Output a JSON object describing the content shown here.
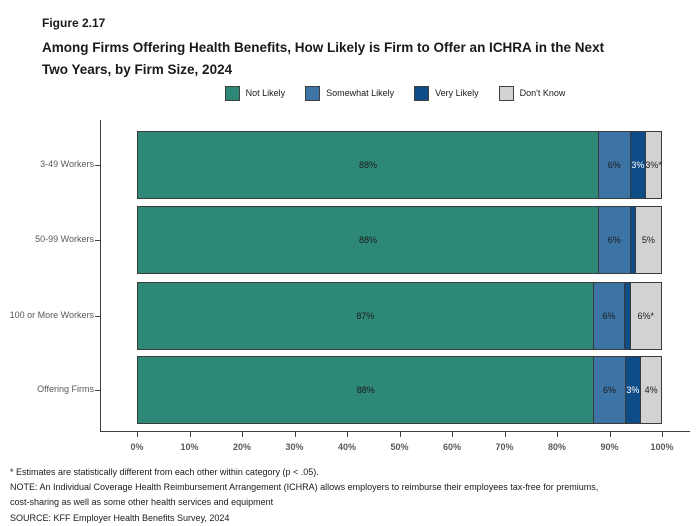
{
  "figure_label": "Figure 2.17",
  "title_line1": "Among Firms Offering Health Benefits, How Likely is Firm to Offer an ICHRA in the Next",
  "title_line2": "Two Years, by Firm Size, 2024",
  "footnotes": [
    "* Estimates are statistically different from each other within category (p < .05).",
    "NOTE: An Individual Coverage Health Reimbursement Arrangement (ICHRA) allows employers to reimburse their employees tax-free for premiums,",
    "cost-sharing as well as some other health services and equipment",
    "SOURCE: KFF Employer Health Benefits Survey, 2024"
  ],
  "chart_data": {
    "type": "bar",
    "orientation": "horizontal",
    "stacked": true,
    "title": "Among Firms Offering Health Benefits, How Likely is Firm to Offer an ICHRA in the Next Two Years, by Firm Size, 2024",
    "categories": [
      "3-49 Workers",
      "50-99 Workers",
      "100 or More Workers",
      "Offering Firms"
    ],
    "series": [
      {
        "name": "Not Likely",
        "color": "#2E8877",
        "label_color": "#1a1a1a",
        "values": [
          88,
          88,
          87,
          88
        ],
        "labels": [
          "88%",
          "88%",
          "87%",
          "88%"
        ]
      },
      {
        "name": "Somewhat Likely",
        "color": "#3D74A6",
        "label_color": "#1a1a1a",
        "values": [
          6,
          6,
          6,
          6
        ],
        "labels": [
          "6%",
          "6%",
          "6%",
          "6%"
        ]
      },
      {
        "name": "Very Likely",
        "color": "#0D4C86",
        "label_color": "#ffffff",
        "values": [
          3,
          1,
          1,
          3
        ],
        "labels": [
          "3%",
          "",
          "",
          "3%"
        ]
      },
      {
        "name": "Don't Know",
        "color": "#D2D2D2",
        "label_color": "#1a1a1a",
        "values": [
          3,
          5,
          6,
          4
        ],
        "labels": [
          "3%*",
          "5%",
          "6%*",
          "4%"
        ]
      }
    ],
    "x_ticks": [
      "0%",
      "10%",
      "20%",
      "30%",
      "40%",
      "50%",
      "60%",
      "70%",
      "80%",
      "90%",
      "100%"
    ],
    "xlim": [
      0,
      100
    ],
    "legend_position": "top-center",
    "grid": false,
    "axis_color": "#404040",
    "tick_label_color": "#595959",
    "bar_border_color": "#3a3a3a"
  }
}
